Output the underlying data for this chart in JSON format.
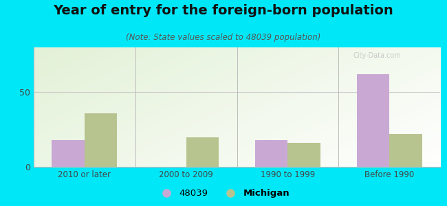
{
  "title": "Year of entry for the foreign-born population",
  "subtitle": "(Note: State values scaled to 48039 population)",
  "categories": [
    "2010 or later",
    "2000 to 2009",
    "1990 to 1999",
    "Before 1990"
  ],
  "values_48039": [
    18,
    0,
    18,
    62
  ],
  "values_michigan": [
    36,
    20,
    16,
    22
  ],
  "color_48039": "#c9a8d4",
  "color_michigan": "#b8c490",
  "ylim": [
    0,
    80
  ],
  "yticks": [
    0,
    50
  ],
  "background_outer": "#00e8f8",
  "bar_width": 0.32,
  "legend_label_48039": "48039",
  "legend_label_michigan": "Michigan",
  "title_fontsize": 14,
  "subtitle_fontsize": 8.5
}
